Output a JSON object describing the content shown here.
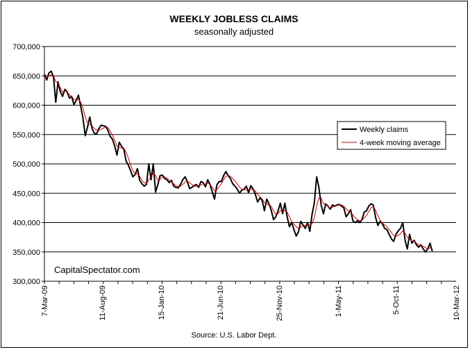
{
  "chart_data": {
    "type": "line",
    "title": "WEEKLY JOBLESS CLAIMS",
    "subtitle": "seasonally adjusted",
    "source": "Source: U.S. Labor Dept.",
    "watermark": "CapitalSpectator.com",
    "ylim": [
      300000,
      700000
    ],
    "y_ticks": [
      {
        "value": 300000,
        "label": "300,000"
      },
      {
        "value": 350000,
        "label": "350,000"
      },
      {
        "value": 400000,
        "label": "400,000"
      },
      {
        "value": 450000,
        "label": "450,000"
      },
      {
        "value": 500000,
        "label": "500,000"
      },
      {
        "value": 550000,
        "label": "550,000"
      },
      {
        "value": 600000,
        "label": "600,000"
      },
      {
        "value": 650000,
        "label": "650,000"
      },
      {
        "value": 700000,
        "label": "700,000"
      }
    ],
    "x_start": "7-Mar-09",
    "x_end": "10-Mar-12",
    "x_ticks": [
      {
        "week": 0,
        "label": "7-Mar-09"
      },
      {
        "week": 22,
        "label": "11-Aug-09"
      },
      {
        "week": 44.5,
        "label": "15-Jan-10"
      },
      {
        "week": 67,
        "label": "21-Jun-10"
      },
      {
        "week": 89.5,
        "label": "25-Nov-10"
      },
      {
        "week": 112,
        "label": "1-May-11"
      },
      {
        "week": 134,
        "label": "5-Oct-11"
      },
      {
        "week": 157,
        "label": "10-Mar-12"
      }
    ],
    "grid": true,
    "legend_position": "right",
    "series": [
      {
        "name": "Weekly claims",
        "color": "#000000",
        "values": [
          653000,
          643000,
          655000,
          658000,
          648000,
          605000,
          640000,
          623000,
          615000,
          627000,
          623000,
          612000,
          615000,
          601000,
          608000,
          617000,
          598000,
          578000,
          548000,
          563000,
          580000,
          560000,
          552000,
          551000,
          560000,
          566000,
          565000,
          564000,
          557000,
          547000,
          542000,
          530000,
          515000,
          537000,
          530000,
          525000,
          505000,
          498000,
          488000,
          478000,
          482000,
          492000,
          472000,
          466000,
          462000,
          465000,
          500000,
          473000,
          500000,
          452000,
          465000,
          480000,
          481000,
          475000,
          473000,
          468000,
          472000,
          462000,
          460000,
          459000,
          465000,
          473000,
          478000,
          470000,
          458000,
          460000,
          463000,
          465000,
          460000,
          470000,
          468000,
          461000,
          473000,
          465000,
          452000,
          440000,
          464000,
          470000,
          470000,
          480000,
          487000,
          480000,
          475000,
          466000,
          462000,
          457000,
          450000,
          455000,
          457000,
          462000,
          451000,
          463000,
          457000,
          448000,
          435000,
          442000,
          438000,
          420000,
          440000,
          432000,
          421000,
          405000,
          410000,
          420000,
          433000,
          415000,
          433000,
          410000,
          393000,
          400000,
          388000,
          377000,
          384000,
          402000,
          396000,
          390000,
          400000,
          385000,
          414000,
          434000,
          478000,
          460000,
          430000,
          415000,
          432000,
          428000,
          423000,
          430000,
          428000,
          430000,
          431000,
          428000,
          425000,
          410000,
          415000,
          422000,
          403000,
          400000,
          403000,
          400000,
          405000,
          418000,
          420000,
          428000,
          432000,
          430000,
          409000,
          395000,
          402000,
          398000,
          390000,
          388000,
          380000,
          372000,
          368000,
          380000,
          386000,
          390000,
          400000,
          370000,
          355000,
          380000,
          365000,
          370000,
          362000,
          358000,
          362000,
          355000,
          350000,
          355000,
          365000,
          351000
        ],
        "week_step": 0.865
      },
      {
        "name": "4-week moving average",
        "color": "#cc0000",
        "values": [
          648000,
          647000,
          650000,
          652000,
          651000,
          640000,
          638000,
          630000,
          622000,
          625000,
          622000,
          618000,
          615000,
          610000,
          608000,
          610000,
          605000,
          595000,
          580000,
          570000,
          567000,
          565000,
          560000,
          558000,
          557000,
          559000,
          561000,
          563000,
          562000,
          556000,
          549000,
          540000,
          530000,
          528000,
          527000,
          527000,
          520000,
          510000,
          498000,
          488000,
          483000,
          483000,
          479000,
          472000,
          468000,
          466000,
          473000,
          477000,
          484000,
          480000,
          472000,
          474000,
          477000,
          478000,
          476000,
          472000,
          469000,
          466000,
          463000,
          461000,
          462000,
          465000,
          469000,
          471000,
          468000,
          465000,
          462000,
          462000,
          463000,
          464000,
          466000,
          466000,
          467000,
          465000,
          460000,
          454000,
          456000,
          461000,
          466000,
          473000,
          479000,
          480000,
          479000,
          475000,
          471000,
          466000,
          461000,
          457000,
          456000,
          456000,
          456000,
          457000,
          456000,
          454000,
          448000,
          444000,
          440000,
          434000,
          432000,
          430000,
          428000,
          420000,
          414000,
          415000,
          420000,
          422000,
          420000,
          418000,
          410000,
          402000,
          397000,
          393000,
          390000,
          392000,
          395000,
          395000,
          396000,
          396000,
          398000,
          408000,
          428000,
          442000,
          442000,
          432000,
          432000,
          427000,
          425000,
          426000,
          428000,
          429000,
          430000,
          430000,
          428000,
          423000,
          420000,
          418000,
          413000,
          408000,
          405000,
          403000,
          404000,
          408000,
          412000,
          419000,
          425000,
          428000,
          421000,
          412000,
          404000,
          399000,
          396000,
          393000,
          388000,
          383000,
          378000,
          377000,
          378000,
          381000,
          386000,
          382000,
          375000,
          372000,
          368000,
          368000,
          365000,
          362000,
          361000,
          360000,
          357000,
          355000,
          357000,
          355000
        ],
        "week_step": 0.865
      }
    ]
  }
}
